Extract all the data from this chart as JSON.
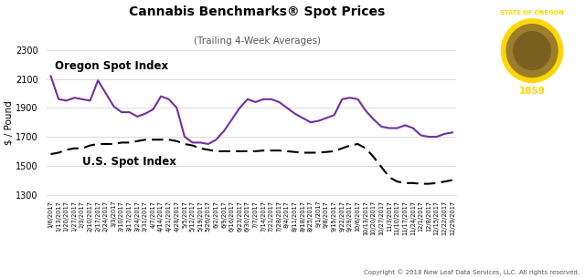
{
  "title": "Cannabis Benchmarks® Spot Prices",
  "subtitle": "(Trailing 4-Week Averages)",
  "ylabel": "$ / Pound",
  "copyright": "Copyright © 2018 New Leaf Data Services, LLC. All rights reserved.",
  "ylim": [
    1300,
    2300
  ],
  "yticks": [
    1300,
    1500,
    1700,
    1900,
    2100,
    2300
  ],
  "oregon_label": "Oregon Spot Index",
  "us_label": "U.S. Spot Index",
  "oregon_color": "#7030A0",
  "us_color": "#000000",
  "bg_color": "#ffffff",
  "flag_bg": "#1a3a8a",
  "flag_text_color": "#FFD700",
  "dates": [
    "1/6/2017",
    "1/13/2017",
    "1/20/2017",
    "1/27/2017",
    "2/3/2017",
    "2/10/2017",
    "2/17/2017",
    "2/24/2017",
    "3/3/2017",
    "3/10/2017",
    "3/17/2017",
    "3/24/2017",
    "3/31/2017",
    "4/7/2017",
    "4/14/2017",
    "4/21/2017",
    "4/28/2017",
    "5/5/2017",
    "5/12/2017",
    "5/19/2017",
    "5/26/2017",
    "6/2/2017",
    "6/9/2017",
    "6/16/2017",
    "6/23/2017",
    "6/30/2017",
    "7/7/2017",
    "7/14/2017",
    "7/21/2017",
    "7/28/2017",
    "8/4/2017",
    "8/11/2017",
    "8/18/2017",
    "8/25/2017",
    "9/1/2017",
    "9/8/2017",
    "9/15/2017",
    "9/22/2017",
    "9/29/2017",
    "10/6/2017",
    "10/13/2017",
    "10/20/2017",
    "10/27/2017",
    "11/3/2017",
    "11/10/2017",
    "11/17/2017",
    "11/24/2017",
    "12/1/2017",
    "12/8/2017",
    "12/15/2017",
    "12/22/2017",
    "12/29/2017"
  ],
  "oregon_values": [
    2120,
    1960,
    1950,
    1970,
    1960,
    1950,
    2090,
    2000,
    1910,
    1870,
    1870,
    1840,
    1860,
    1890,
    1980,
    1960,
    1900,
    1700,
    1660,
    1660,
    1650,
    1680,
    1740,
    1820,
    1900,
    1960,
    1940,
    1960,
    1960,
    1940,
    1900,
    1860,
    1830,
    1800,
    1810,
    1830,
    1850,
    1960,
    1970,
    1960,
    1880,
    1820,
    1770,
    1760,
    1760,
    1780,
    1760,
    1710,
    1700,
    1700,
    1720,
    1730
  ],
  "us_values": [
    1580,
    1590,
    1610,
    1620,
    1620,
    1640,
    1650,
    1650,
    1650,
    1660,
    1660,
    1670,
    1680,
    1680,
    1680,
    1680,
    1670,
    1650,
    1640,
    1620,
    1610,
    1600,
    1600,
    1600,
    1600,
    1600,
    1600,
    1605,
    1605,
    1605,
    1600,
    1595,
    1590,
    1590,
    1590,
    1595,
    1600,
    1620,
    1640,
    1650,
    1620,
    1560,
    1490,
    1420,
    1390,
    1380,
    1380,
    1375,
    1375,
    1380,
    1390,
    1400
  ]
}
